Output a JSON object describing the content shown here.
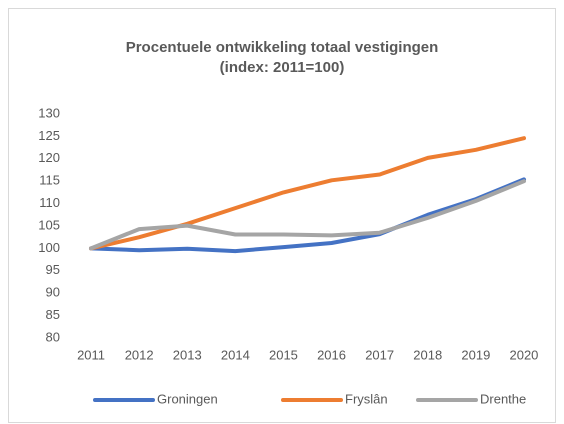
{
  "chart_data": {
    "type": "line",
    "title": "Procentuele ontwikkeling totaal vestigingen",
    "subtitle": "(index: 2011=100)",
    "categories": [
      "2011",
      "2012",
      "2013",
      "2014",
      "2015",
      "2016",
      "2017",
      "2018",
      "2019",
      "2020"
    ],
    "series": [
      {
        "name": "Groningen",
        "color": "#4472c4",
        "values": [
          100,
          99.6,
          99.9,
          99.4,
          100.3,
          101.2,
          103.2,
          107.5,
          111,
          115.4
        ]
      },
      {
        "name": "Fryslân",
        "color": "#ed7d31",
        "values": [
          100,
          102.5,
          105.5,
          109,
          112.5,
          115.2,
          116.5,
          120.2,
          122,
          124.6
        ]
      },
      {
        "name": "Drenthe",
        "color": "#a5a5a5",
        "values": [
          100,
          104.3,
          105.1,
          103.1,
          103.1,
          102.9,
          103.5,
          106.8,
          110.6,
          115
        ]
      }
    ],
    "ylim": [
      80,
      130
    ],
    "yticks": [
      80,
      85,
      90,
      95,
      100,
      105,
      110,
      115,
      120,
      125,
      130
    ],
    "grid": false,
    "legend": "bottom"
  }
}
